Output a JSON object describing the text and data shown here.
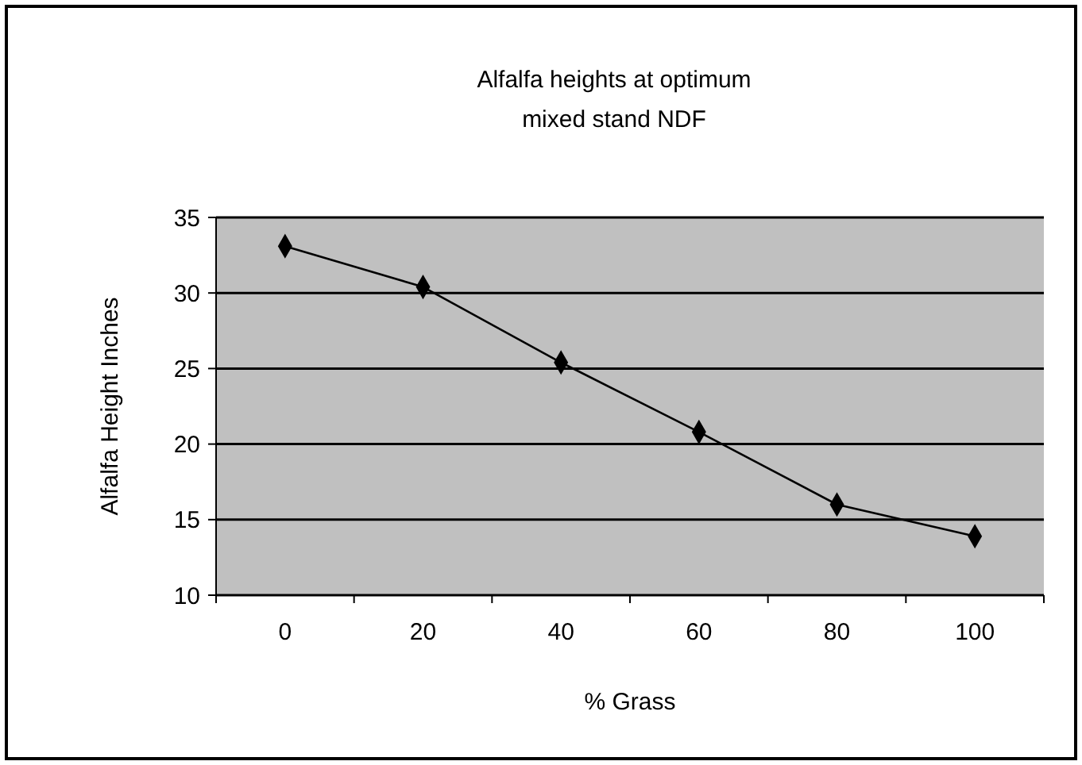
{
  "chart_data": {
    "type": "line",
    "title": "Alfalfa heights at optimum mixed stand NDF",
    "xlabel": "% Grass",
    "ylabel": "Alfalfa Height Inches",
    "categories": [
      "0",
      "20",
      "40",
      "60",
      "80",
      "100"
    ],
    "series": [
      {
        "color": "#000000",
        "values": [
          33.1,
          30.4,
          25.4,
          20.8,
          16.0,
          13.9
        ]
      }
    ],
    "ylim": [
      10,
      35
    ],
    "yticks": [
      10,
      15,
      20,
      25,
      30,
      35
    ],
    "grid": "y",
    "marker": "diamond",
    "line_style": "solid"
  }
}
